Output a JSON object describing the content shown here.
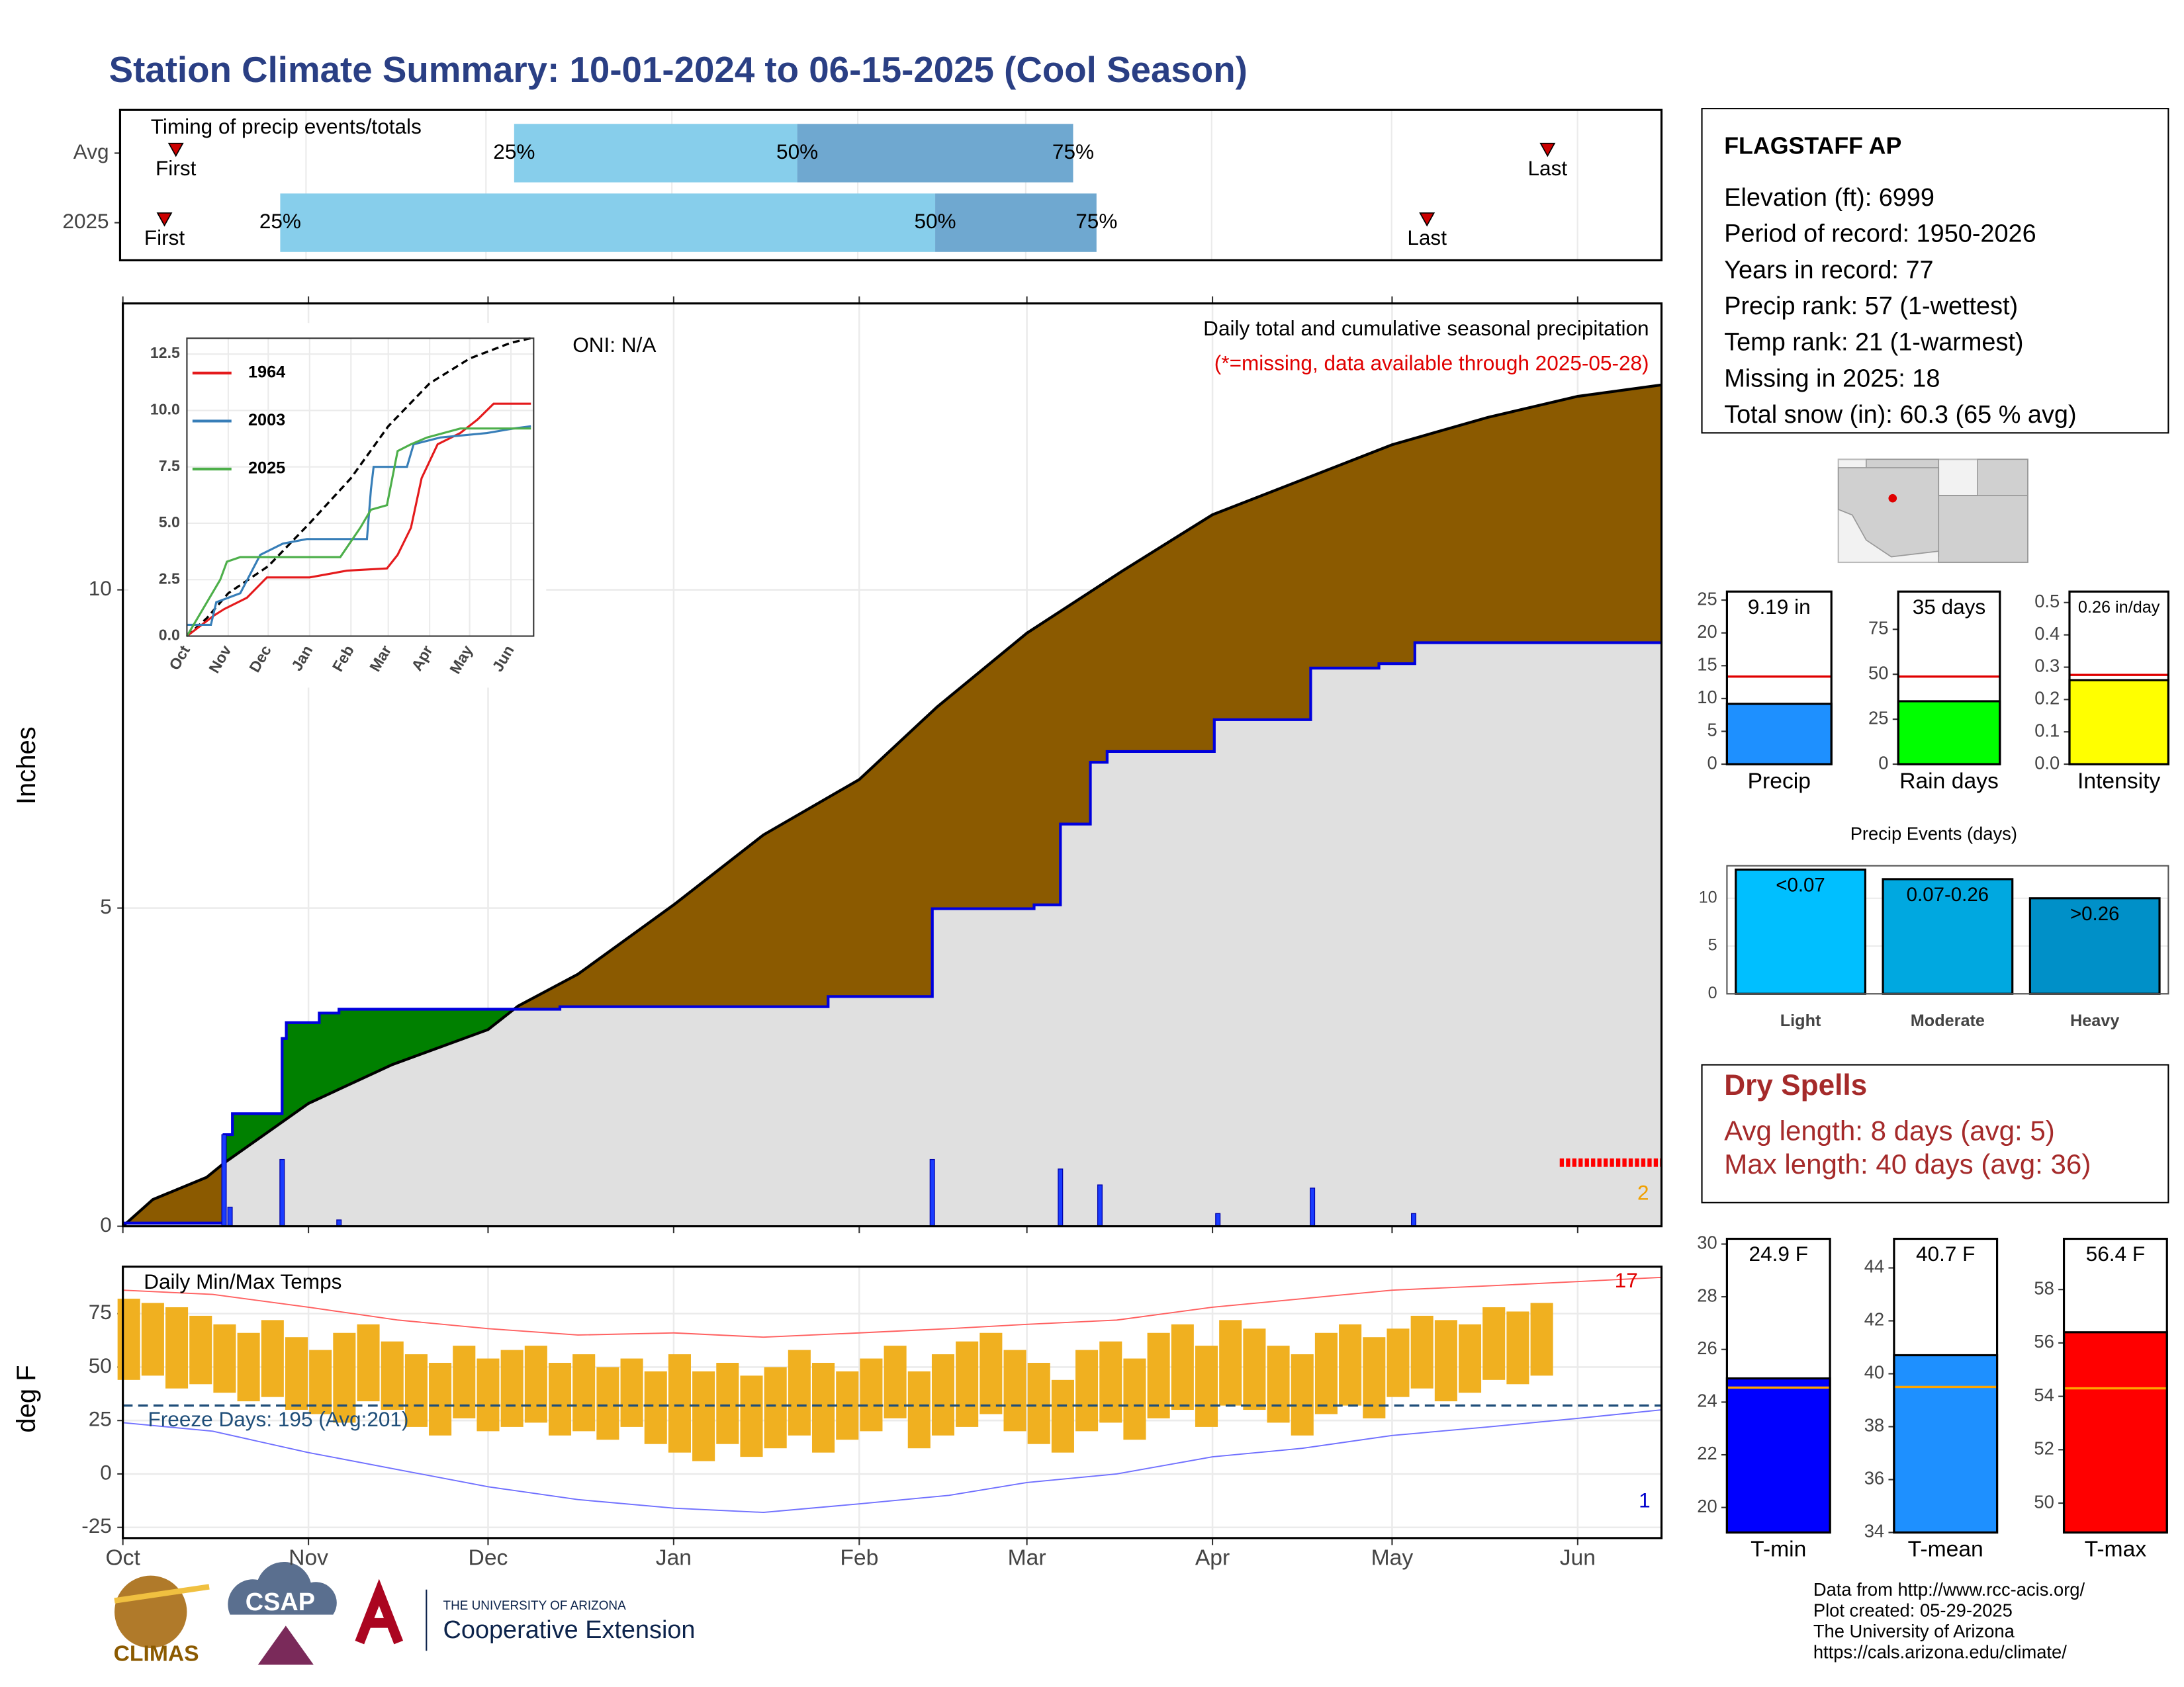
{
  "title": "Station Climate Summary: 10-01-2024 to 06-15-2025 (Cool Season)",
  "station": {
    "title": "FLAGSTAFF AP",
    "lines": [
      "Elevation (ft): 6999",
      "Period of record: 1950-2026",
      "Years in record: 77",
      "Precip rank: 57 (1-wettest)",
      "Temp rank: 21 (1-warmest)",
      "Missing in 2025: 18",
      "Total snow (in): 60.3 (65 % avg)"
    ]
  },
  "dry_spells": {
    "title": "Dry Spells",
    "lines": [
      "Avg length: 8 days (avg: 5)",
      "Max length: 40 days (avg: 36)"
    ]
  },
  "footer": [
    "Data from http://www.rcc-acis.org/",
    "Plot created: 05-29-2025",
    "The University of Arizona",
    "https://cals.arizona.edu/climate/"
  ],
  "logos": [
    "CLIMAS",
    "CSAP",
    "THE UNIVERSITY OF ARIZONA",
    "Cooperative Extension"
  ],
  "chart_data": [
    {
      "type": "timeline",
      "title": "Timing of precip events/totals",
      "xlim": [
        0,
        257
      ],
      "xticks": [
        0,
        31,
        61,
        92,
        123,
        151,
        182,
        212,
        243
      ],
      "labels": {
        "first": "First",
        "q25": "25%",
        "q50": "50%",
        "q75": "75%",
        "last": "Last"
      },
      "colors": [
        "#87ceeb",
        "#6fa8d0",
        "#cc0000"
      ],
      "rows": [
        {
          "name": "Avg",
          "first": 9.3,
          "q25": 65.7,
          "q50": 112.9,
          "q75": 158.9,
          "last": 238
        },
        {
          "name": "2025",
          "first": 7.4,
          "q25": 26.7,
          "q50": 135.9,
          "q75": 162.8,
          "last": 217.9
        }
      ]
    },
    {
      "type": "cumulative",
      "ylabel": "Inches",
      "xlim": [
        0,
        257
      ],
      "ylim": [
        0,
        14.5
      ],
      "yticks": [
        0,
        5,
        10
      ],
      "xticks": [
        0,
        31,
        61,
        92,
        123,
        151,
        182,
        212,
        243
      ],
      "grid": true,
      "annotations": [
        {
          "text": "ONI: N/A",
          "color": "#000000"
        },
        {
          "text": "Daily total and cumulative seasonal precipitation",
          "color": "#000000"
        },
        {
          "text": "(*=missing, data available through 2025-05-28)",
          "color": "#e00000"
        },
        {
          "text": "2",
          "color": "#f0a000"
        }
      ],
      "colors": {
        "above": "#008000",
        "below": "#8b5a00",
        "base": "#e0e0e0"
      },
      "average": {
        "color": "#000000",
        "x": [
          0,
          5,
          14,
          17,
          31,
          45,
          61,
          66,
          76,
          92,
          107,
          123,
          136,
          151,
          167,
          182,
          197,
          212,
          228,
          243,
          257
        ],
        "values": [
          0,
          0.42,
          0.77,
          1.0,
          1.93,
          2.54,
          3.09,
          3.46,
          3.96,
          5.05,
          6.15,
          7.02,
          8.16,
          9.32,
          10.3,
          11.18,
          11.73,
          12.28,
          12.71,
          13.04,
          13.22
        ]
      },
      "observed": {
        "color": "#0000dd",
        "x": [
          0,
          16.9,
          16.9,
          18.3,
          18.3,
          26.6,
          26.6,
          27.3,
          27.3,
          32.8,
          32.8,
          36.1,
          36.1,
          73,
          73,
          117.8,
          117.8,
          135.2,
          135.2,
          152.2,
          152.2,
          156.6,
          156.6,
          161.6,
          161.6,
          164.4,
          164.4,
          182.3,
          182.3,
          198.4,
          198.4,
          209.8,
          209.8,
          215.8,
          215.8,
          257
        ],
        "values": [
          0.05,
          0.05,
          1.44,
          1.44,
          1.77,
          1.77,
          2.95,
          2.95,
          3.2,
          3.2,
          3.35,
          3.35,
          3.41,
          3.41,
          3.45,
          3.45,
          3.61,
          3.61,
          4.99,
          4.99,
          5.05,
          5.05,
          6.32,
          6.32,
          7.29,
          7.29,
          7.46,
          7.46,
          7.96,
          7.96,
          8.77,
          8.77,
          8.84,
          8.84,
          9.17,
          9.17
        ]
      },
      "daily": {
        "color": "#1a3cff",
        "x": [
          16.9,
          17.9,
          26.6,
          36.1,
          135.2,
          156.6,
          163.2,
          182.9,
          198.7,
          215.6
        ],
        "values": [
          1.44,
          0.3,
          1.05,
          0.1,
          1.05,
          0.9,
          0.65,
          0.2,
          0.6,
          0.2
        ]
      },
      "missing": {
        "color": "#ff0000",
        "x": [
          240,
          257
        ],
        "y": 1.0
      }
    },
    {
      "type": "line",
      "xlim": [
        0,
        260
      ],
      "ylim": [
        0,
        13.2
      ],
      "yticks": [
        {
          "value": 0,
          "label": "0.0"
        },
        {
          "value": 2.5,
          "label": "2.5"
        },
        {
          "value": 5,
          "label": "5.0"
        },
        {
          "value": 7.5,
          "label": "7.5"
        },
        {
          "value": 10,
          "label": "10.0"
        },
        {
          "value": 12.5,
          "label": "12.5"
        }
      ],
      "xticks": [
        {
          "value": 0,
          "label": "Oct"
        },
        {
          "value": 31,
          "label": "Nov"
        },
        {
          "value": 61,
          "label": "Dec"
        },
        {
          "value": 92,
          "label": "Jan"
        },
        {
          "value": 123,
          "label": "Feb"
        },
        {
          "value": 151,
          "label": "Mar"
        },
        {
          "value": 182,
          "label": "Apr"
        },
        {
          "value": 212,
          "label": "May"
        },
        {
          "value": 243,
          "label": "Jun"
        }
      ],
      "average": {
        "color": "#000000",
        "x": [
          0,
          15,
          31,
          61,
          92,
          123,
          151,
          182,
          212,
          243,
          258
        ],
        "values": [
          0,
          0.8,
          1.9,
          3.1,
          5.0,
          7.0,
          9.3,
          11.2,
          12.3,
          13.0,
          13.2
        ]
      },
      "series": [
        {
          "name": "1964",
          "color": "#e41a1c",
          "x": [
            0,
            20,
            28,
            45,
            60,
            92,
            120,
            150,
            158,
            168,
            176,
            188,
            205,
            218,
            230,
            258
          ],
          "values": [
            0,
            0.9,
            1.2,
            1.7,
            2.6,
            2.6,
            2.9,
            3.0,
            3.6,
            4.8,
            7.0,
            8.5,
            9.0,
            9.6,
            10.3,
            10.3
          ]
        },
        {
          "name": "2003",
          "color": "#377eb8",
          "x": [
            0,
            18,
            22,
            40,
            55,
            72,
            90,
            135,
            138,
            140,
            165,
            170,
            190,
            225,
            245,
            258
          ],
          "values": [
            0.5,
            0.5,
            1.5,
            1.9,
            3.6,
            4.1,
            4.3,
            4.3,
            6.5,
            7.5,
            7.5,
            8.5,
            8.8,
            9.0,
            9.2,
            9.3
          ]
        },
        {
          "name": "2025",
          "color": "#4daf4a",
          "x": [
            0,
            25,
            30,
            40,
            115,
            130,
            138,
            150,
            158,
            168,
            180,
            205,
            258
          ],
          "values": [
            0,
            2.5,
            3.3,
            3.5,
            3.5,
            4.8,
            5.6,
            5.8,
            8.2,
            8.5,
            8.8,
            9.2,
            9.2
          ]
        }
      ]
    },
    {
      "type": "range-bar",
      "title": "Daily Min/Max Temps",
      "ylabel": "deg F",
      "xlim": [
        0,
        257
      ],
      "ylim": [
        -30,
        97
      ],
      "yticks": [
        -25,
        0,
        25,
        50,
        75
      ],
      "grid": true,
      "xticks": [
        {
          "value": 0,
          "label": "Oct"
        },
        {
          "value": 31,
          "label": "Nov"
        },
        {
          "value": 61,
          "label": "Dec"
        },
        {
          "value": 92,
          "label": "Jan"
        },
        {
          "value": 123,
          "label": "Feb"
        },
        {
          "value": 151,
          "label": "Mar"
        },
        {
          "value": 182,
          "label": "Apr"
        },
        {
          "value": 212,
          "label": "May"
        },
        {
          "value": 243,
          "label": "Jun"
        }
      ],
      "color": "#f0b020",
      "bar_days": 4,
      "x": [
        1,
        5,
        9,
        13,
        17,
        21,
        25,
        29,
        33,
        37,
        41,
        45,
        49,
        53,
        57,
        61,
        65,
        69,
        73,
        77,
        81,
        85,
        89,
        93,
        97,
        101,
        105,
        109,
        113,
        117,
        121,
        125,
        129,
        133,
        137,
        141,
        145,
        149,
        153,
        157,
        161,
        165,
        169,
        173,
        177,
        181,
        185,
        189,
        193,
        197,
        201,
        205,
        209,
        213,
        217,
        221,
        225,
        229,
        233,
        237
      ],
      "max": [
        82,
        80,
        78,
        74,
        70,
        66,
        72,
        64,
        58,
        66,
        70,
        62,
        56,
        52,
        60,
        54,
        58,
        60,
        52,
        56,
        50,
        54,
        48,
        56,
        48,
        52,
        46,
        50,
        58,
        52,
        48,
        54,
        60,
        48,
        56,
        62,
        66,
        58,
        52,
        44,
        58,
        62,
        54,
        66,
        70,
        60,
        72,
        68,
        60,
        56,
        66,
        70,
        64,
        68,
        74,
        72,
        70,
        78,
        76,
        80
      ],
      "min": [
        44,
        46,
        40,
        42,
        38,
        34,
        36,
        30,
        28,
        24,
        34,
        30,
        22,
        18,
        26,
        20,
        22,
        24,
        18,
        20,
        16,
        22,
        14,
        10,
        6,
        14,
        8,
        12,
        18,
        10,
        16,
        20,
        26,
        12,
        18,
        22,
        28,
        20,
        14,
        10,
        20,
        24,
        16,
        26,
        30,
        22,
        32,
        30,
        24,
        18,
        28,
        32,
        26,
        36,
        40,
        34,
        38,
        44,
        42,
        46
      ],
      "record_high": {
        "color": "#ff6060",
        "x": [
          0,
          15,
          31,
          46,
          61,
          76,
          92,
          107,
          123,
          138,
          151,
          166,
          182,
          197,
          212,
          228,
          243,
          257
        ],
        "values": [
          86,
          84,
          78,
          72,
          68,
          65,
          66,
          64,
          66,
          68,
          70,
          72,
          78,
          82,
          86,
          88,
          90,
          92
        ]
      },
      "record_low": {
        "color": "#7070ff",
        "x": [
          0,
          15,
          31,
          46,
          61,
          76,
          92,
          107,
          123,
          138,
          151,
          166,
          182,
          197,
          212,
          228,
          243,
          257
        ],
        "values": [
          24,
          20,
          10,
          2,
          -6,
          -12,
          -16,
          -18,
          -14,
          -10,
          -4,
          0,
          8,
          12,
          18,
          22,
          26,
          30
        ]
      },
      "freeze": {
        "value": 32,
        "label": "Freeze Days: 195 (Avg:201)",
        "color": "#1f4e79"
      },
      "annotations": [
        {
          "text": "17",
          "color": "#e00000"
        },
        {
          "text": "1",
          "color": "#0000cc"
        }
      ]
    },
    {
      "type": "bar",
      "xlabel": "Precip",
      "values": [
        9.19
      ],
      "value_labels": [
        "9.19 in"
      ],
      "average": 13.35,
      "ylim": [
        0,
        26.3
      ],
      "yticks": [
        0,
        5,
        10,
        15,
        20,
        25
      ],
      "color": "#1e90ff",
      "average_color": "#e00000"
    },
    {
      "type": "bar",
      "xlabel": "Rain days",
      "values": [
        35
      ],
      "value_labels": [
        "35 days"
      ],
      "average": 48.7,
      "ylim": [
        0,
        96
      ],
      "yticks": [
        0,
        25,
        50,
        75
      ],
      "color": "#00ff00",
      "average_color": "#e00000"
    },
    {
      "type": "bar",
      "xlabel": "Intensity",
      "values": [
        0.26
      ],
      "value_labels": [
        "0.26 in/day"
      ],
      "average": 0.276,
      "ylim": [
        0,
        0.534
      ],
      "yticks": [
        {
          "value": 0,
          "label": "0.0"
        },
        0.1,
        0.2,
        0.3,
        0.4,
        0.5
      ],
      "color": "#ffff00",
      "average_color": "#e00000"
    },
    {
      "type": "events",
      "title": "Precip Events (days)",
      "categories": [
        "Light",
        "Moderate",
        "Heavy"
      ],
      "values": [
        13,
        12,
        10
      ],
      "bin_labels": [
        "<0.07",
        "0.07-0.26",
        ">0.26"
      ],
      "ylim": [
        0,
        13.4
      ],
      "yticks": [
        0,
        5,
        10
      ],
      "colors": [
        "#00bfff",
        "#00a8e0",
        "#0090c8"
      ]
    },
    {
      "type": "bar",
      "xlabel": "T-min",
      "values": [
        24.9
      ],
      "value_labels": [
        "24.9 F"
      ],
      "average": 24.55,
      "ylim": [
        19.05,
        30.2
      ],
      "yticks": [
        20,
        22,
        24,
        26,
        28,
        30
      ],
      "color": "#0000ff",
      "average_color": "#ffa500"
    },
    {
      "type": "bar",
      "xlabel": "T-mean",
      "values": [
        40.7
      ],
      "value_labels": [
        "40.7 F"
      ],
      "average": 39.5,
      "ylim": [
        34,
        45.1
      ],
      "yticks": [
        34,
        36,
        38,
        40,
        42,
        44
      ],
      "color": "#1e90ff",
      "average_color": "#ffa500"
    },
    {
      "type": "bar",
      "xlabel": "T-max",
      "values": [
        56.4
      ],
      "value_labels": [
        "56.4 F"
      ],
      "average": 54.3,
      "ylim": [
        48.9,
        59.9
      ],
      "yticks": [
        50,
        52,
        54,
        56,
        58
      ],
      "color": "#ff0000",
      "average_color": "#ffa500"
    }
  ]
}
